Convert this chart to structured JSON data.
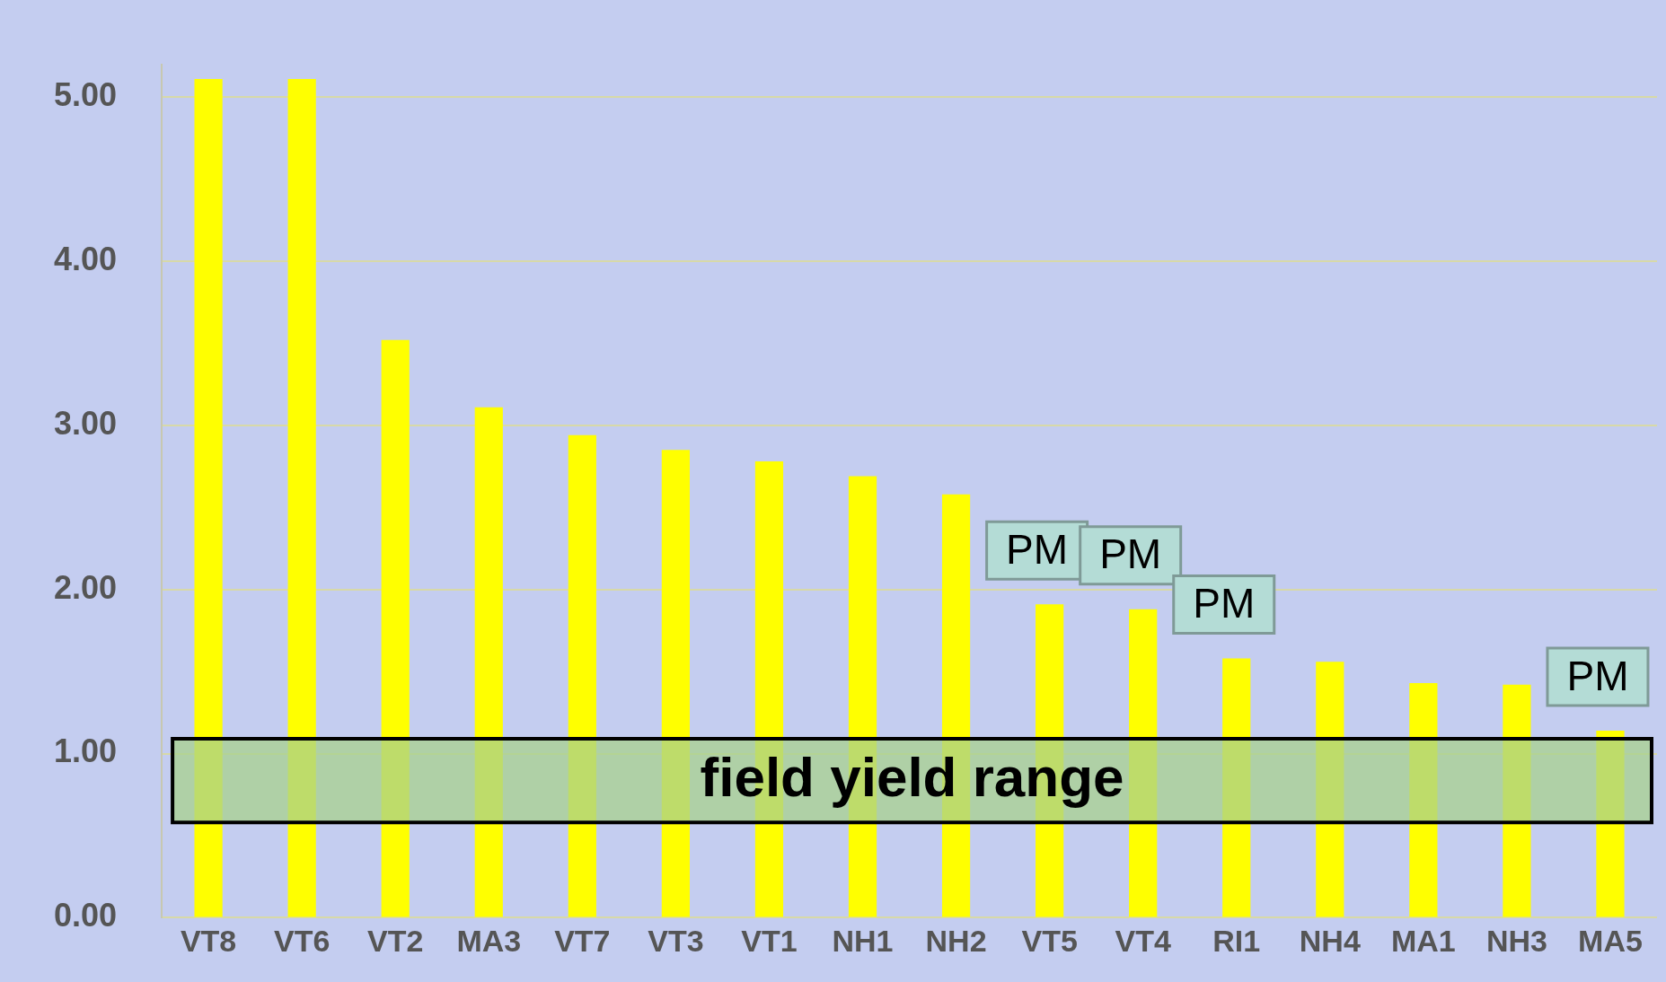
{
  "chart_data": {
    "type": "bar",
    "categories": [
      "VT8",
      "VT6",
      "VT2",
      "MA3",
      "VT7",
      "VT3",
      "VT1",
      "NH1",
      "NH2",
      "VT5",
      "VT4",
      "RI1",
      "NH4",
      "MA1",
      "NH3",
      "MA5"
    ],
    "values": [
      5.11,
      5.11,
      3.52,
      3.11,
      2.94,
      2.85,
      2.78,
      2.69,
      2.58,
      1.91,
      1.88,
      1.58,
      1.56,
      1.43,
      1.42,
      1.14
    ],
    "color": "#ffff00",
    "ylim": [
      0,
      5.2
    ],
    "yticks": [
      {
        "value": 0,
        "label": "0.00"
      },
      {
        "value": 1,
        "label": "1.00"
      },
      {
        "value": 2,
        "label": "2.00"
      },
      {
        "value": 3,
        "label": "3.00"
      },
      {
        "value": 4,
        "label": "4.00"
      },
      {
        "value": 5,
        "label": "5.00"
      }
    ],
    "grid": "y",
    "bands": [
      {
        "axis": "y",
        "from": 0.58,
        "to": 1.09,
        "label": "field yield range",
        "color": "#a8d08d"
      }
    ],
    "annotations": [
      {
        "text": "PM",
        "x": "VT5",
        "y": 1.91
      },
      {
        "text": "PM",
        "x": "VT4",
        "y": 1.88
      },
      {
        "text": "PM",
        "x": "RI1",
        "y": 1.58
      },
      {
        "text": "PM",
        "x": "MA5",
        "y": 1.14
      }
    ]
  }
}
